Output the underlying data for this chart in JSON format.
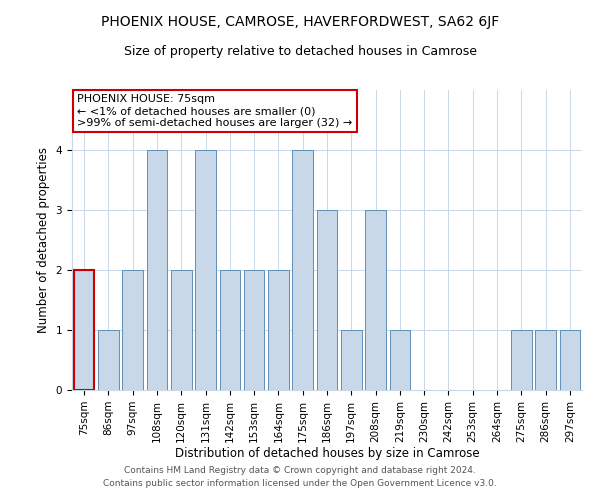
{
  "title": "PHOENIX HOUSE, CAMROSE, HAVERFORDWEST, SA62 6JF",
  "subtitle": "Size of property relative to detached houses in Camrose",
  "xlabel": "Distribution of detached houses by size in Camrose",
  "ylabel": "Number of detached properties",
  "categories": [
    "75sqm",
    "86sqm",
    "97sqm",
    "108sqm",
    "120sqm",
    "131sqm",
    "142sqm",
    "153sqm",
    "164sqm",
    "175sqm",
    "186sqm",
    "197sqm",
    "208sqm",
    "219sqm",
    "230sqm",
    "242sqm",
    "253sqm",
    "264sqm",
    "275sqm",
    "286sqm",
    "297sqm"
  ],
  "values": [
    2,
    1,
    2,
    4,
    2,
    4,
    2,
    2,
    2,
    4,
    3,
    1,
    3,
    1,
    0,
    0,
    0,
    0,
    1,
    1,
    1
  ],
  "bar_color": "#c8d8e8",
  "bar_edge_color": "#6090b8",
  "highlight_index": 0,
  "highlight_bar_edge_color": "#cc0000",
  "annotation_box_line1": "PHOENIX HOUSE: 75sqm",
  "annotation_box_line2": "← <1% of detached houses are smaller (0)",
  "annotation_box_line3": ">99% of semi-detached houses are larger (32) →",
  "annotation_box_color": "#ffffff",
  "annotation_box_edge_color": "#cc0000",
  "ylim": [
    0,
    5
  ],
  "yticks": [
    0,
    1,
    2,
    3,
    4
  ],
  "background_color": "#ffffff",
  "grid_color": "#c8d8e8",
  "footer_line1": "Contains HM Land Registry data © Crown copyright and database right 2024.",
  "footer_line2": "Contains public sector information licensed under the Open Government Licence v3.0.",
  "title_fontsize": 10,
  "subtitle_fontsize": 9,
  "axis_label_fontsize": 8.5,
  "tick_fontsize": 7.5,
  "annotation_fontsize": 8,
  "footer_fontsize": 6.5
}
